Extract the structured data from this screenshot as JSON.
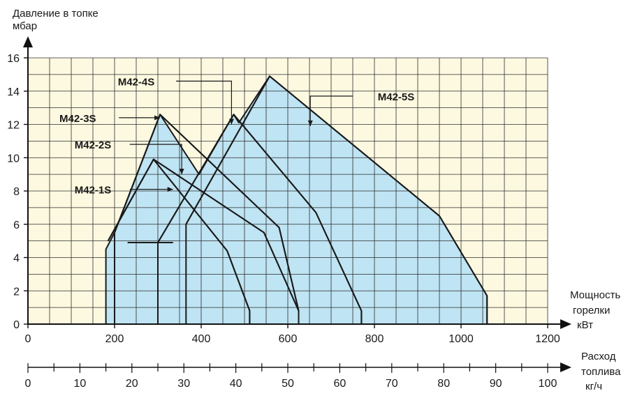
{
  "chart_data": {
    "type": "area",
    "title": "",
    "ylabel_line1": "Давление в топке",
    "ylabel_line2": "мбар",
    "xlabel_line1": "Мощность",
    "xlabel_line2": "горелки",
    "xlabel_line3": "кВт",
    "x2label_line1": "Расход",
    "x2label_line2": "топлива",
    "x2label_line3": "кг/ч",
    "xlim": [
      0,
      1200
    ],
    "ylim": [
      0,
      16
    ],
    "x2lim": [
      0,
      100
    ],
    "x_ticks": [
      "0",
      "200",
      "400",
      "600",
      "800",
      "1000",
      "1200"
    ],
    "y_ticks": [
      "0",
      "2",
      "4",
      "6",
      "8",
      "10",
      "12",
      "14",
      "16"
    ],
    "x2_ticks": [
      "0",
      "10",
      "20",
      "30",
      "40",
      "50",
      "60",
      "70",
      "80",
      "90",
      "100"
    ],
    "grid": true,
    "colors": {
      "plot_bg": "#fdf9e1",
      "area_fill": "#bfe4f3",
      "grid": "#2b2b2b",
      "line": "#1a1a1a"
    },
    "series": [
      {
        "name": "M42-1S",
        "points": [
          [
            185,
            5.0
          ],
          [
            290,
            9.9
          ],
          [
            460,
            4.4
          ],
          [
            512,
            0.8
          ],
          [
            512,
            0
          ]
        ]
      },
      {
        "name": "M42-2S",
        "points": [
          [
            185,
            5.0
          ],
          [
            290,
            9.9
          ],
          [
            545,
            5.5
          ],
          [
            625,
            0.8
          ],
          [
            625,
            0
          ]
        ]
      },
      {
        "name": "M42-3S",
        "points": [
          [
            200,
            5.5
          ],
          [
            305,
            12.6
          ],
          [
            580,
            5.8
          ],
          [
            625,
            0.8
          ],
          [
            625,
            0
          ]
        ]
      },
      {
        "name": "M42-4S",
        "points": [
          [
            300,
            4.9
          ],
          [
            475,
            12.6
          ],
          [
            665,
            6.7
          ],
          [
            770,
            0.8
          ],
          [
            770,
            0
          ]
        ]
      },
      {
        "name": "M42-5S",
        "points": [
          [
            365,
            6.0
          ],
          [
            558,
            14.9
          ],
          [
            950,
            6.5
          ],
          [
            1060,
            1.7
          ],
          [
            1060,
            0
          ]
        ]
      }
    ],
    "region_outline": [
      [
        180,
        0
      ],
      [
        180,
        4.5
      ],
      [
        200,
        5.5
      ],
      [
        305,
        12.6
      ],
      [
        395,
        9.0
      ],
      [
        475,
        12.6
      ],
      [
        487,
        12.1
      ],
      [
        558,
        14.9
      ],
      [
        950,
        6.5
      ],
      [
        1060,
        1.7
      ],
      [
        1060,
        0
      ]
    ],
    "inner_lines": [
      [
        [
          200,
          0
        ],
        [
          200,
          5.5
        ]
      ],
      [
        [
          300,
          0
        ],
        [
          300,
          4.9
        ]
      ],
      [
        [
          365,
          0
        ],
        [
          365,
          6.0
        ]
      ],
      [
        [
          300,
          4.9
        ],
        [
          475,
          12.6
        ]
      ],
      [
        [
          365,
          6.0
        ],
        [
          558,
          14.9
        ]
      ],
      [
        [
          200,
          5.5
        ],
        [
          305,
          12.6
        ]
      ],
      [
        [
          185,
          5.0
        ],
        [
          290,
          9.9
        ]
      ],
      [
        [
          290,
          9.9
        ],
        [
          460,
          4.4
        ]
      ],
      [
        [
          460,
          4.4
        ],
        [
          512,
          0.8
        ]
      ],
      [
        [
          512,
          0.8
        ],
        [
          512,
          0
        ]
      ],
      [
        [
          290,
          9.9
        ],
        [
          545,
          5.5
        ]
      ],
      [
        [
          545,
          5.5
        ],
        [
          625,
          0.8
        ]
      ],
      [
        [
          625,
          0.8
        ],
        [
          625,
          0
        ]
      ],
      [
        [
          305,
          12.6
        ],
        [
          580,
          5.8
        ]
      ],
      [
        [
          580,
          5.8
        ],
        [
          625,
          0.8
        ]
      ],
      [
        [
          475,
          12.6
        ],
        [
          665,
          6.7
        ]
      ],
      [
        [
          665,
          6.7
        ],
        [
          770,
          0.8
        ]
      ],
      [
        [
          770,
          0.8
        ],
        [
          770,
          0
        ]
      ],
      [
        [
          230,
          4.9
        ],
        [
          335,
          4.9
        ]
      ]
    ],
    "annotations": [
      {
        "label": "M42-4S",
        "text_at": [
          250,
          14.6
        ],
        "path": [
          [
            342,
            14.6
          ],
          [
            470,
            14.6
          ],
          [
            470,
            12.0
          ]
        ]
      },
      {
        "label": "M42-3S",
        "text_at": [
          115,
          12.4
        ],
        "path": [
          [
            210,
            12.4
          ],
          [
            305,
            12.4
          ]
        ]
      },
      {
        "label": "M42-5S",
        "text_at": [
          850,
          13.7
        ],
        "path": [
          [
            750,
            13.7
          ],
          [
            652,
            13.7
          ],
          [
            652,
            11.9
          ]
        ]
      },
      {
        "label": "M42-2S",
        "text_at": [
          150,
          10.8
        ],
        "path": [
          [
            235,
            10.8
          ],
          [
            355,
            10.8
          ],
          [
            355,
            9.0
          ]
        ]
      },
      {
        "label": "M42-1S",
        "text_at": [
          150,
          8.1
        ],
        "path": [
          [
            235,
            8.1
          ],
          [
            335,
            8.1
          ]
        ]
      }
    ]
  }
}
